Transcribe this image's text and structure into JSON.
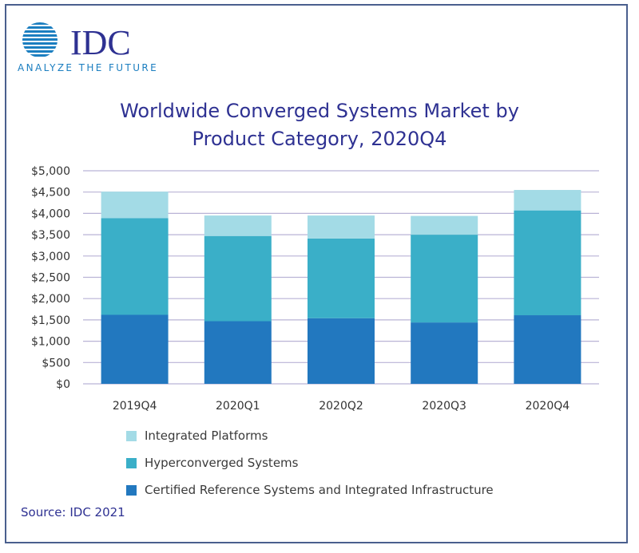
{
  "logo": {
    "wordmark": "IDC",
    "tagline": "ANALYZE THE FUTURE",
    "globe_color": "#1b7ec0",
    "text_color": "#2e3192"
  },
  "title_lines": [
    "Worldwide Converged Systems Market by",
    "Product Category, 2020Q4"
  ],
  "source": "Source: IDC 2021",
  "chart_data": {
    "type": "bar",
    "stacked": true,
    "title": "Worldwide Converged Systems Market by Product Category, 2020Q4",
    "categories": [
      "2019Q4",
      "2020Q1",
      "2020Q2",
      "2020Q3",
      "2020Q4"
    ],
    "ylim": [
      0,
      5000
    ],
    "yticks": [
      0,
      500,
      1000,
      1500,
      2000,
      2500,
      3000,
      3500,
      4000,
      4500,
      5000
    ],
    "ytick_labels": [
      "$0",
      "$500",
      "$1,000",
      "$1,500",
      "$2,000",
      "$2,500",
      "$3,000",
      "$3,500",
      "$4,000",
      "$4,500",
      "$5,000"
    ],
    "grid": true,
    "legend_position": "bottom",
    "series": [
      {
        "name": "Certified Reference Systems and Integrated Infrastructure",
        "color": "#2278bf",
        "values": [
          1620,
          1470,
          1540,
          1440,
          1610
        ]
      },
      {
        "name": "Hyperconverged Systems",
        "color": "#3aafc8",
        "values": [
          2270,
          2000,
          1870,
          2060,
          2460
        ]
      },
      {
        "name": "Integrated Platforms",
        "color": "#a3dbe6",
        "values": [
          620,
          480,
          540,
          440,
          480
        ]
      }
    ],
    "legend_order": [
      "Integrated Platforms",
      "Hyperconverged Systems",
      "Certified Reference Systems and Integrated Infrastructure"
    ]
  }
}
